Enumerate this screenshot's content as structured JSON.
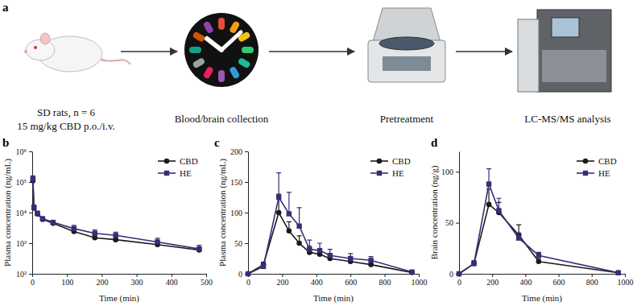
{
  "workflow": {
    "panel_label": "a",
    "steps": [
      {
        "lines": [
          "SD rats, n = 6",
          "15 mg/kg CBD p.o./i.v."
        ]
      },
      {
        "lines": [
          "Blood/brain collection"
        ]
      },
      {
        "lines": [
          "Pretreatment"
        ]
      },
      {
        "lines": [
          "LC-MS/MS analysis"
        ]
      }
    ]
  },
  "chart_data": [
    {
      "type": "line",
      "panel_label": "b",
      "x_label": "Time (min)",
      "y_label": "Plasma concentration (ng/mL)",
      "log": "y",
      "legend": "upper right",
      "x": [
        2,
        5,
        15,
        30,
        60,
        120,
        180,
        240,
        360,
        480
      ],
      "xlim": [
        0,
        500
      ],
      "xticks": [
        0,
        100,
        200,
        300,
        400,
        500
      ],
      "ylim": [
        100,
        1000000
      ],
      "yticks": [
        {
          "value": 100,
          "label": "10²"
        },
        {
          "value": 1000,
          "label": "10³"
        },
        {
          "value": 10000,
          "label": "10⁴"
        },
        {
          "value": 100000,
          "label": "10⁵"
        },
        {
          "value": 1000000,
          "label": "10⁶"
        }
      ],
      "series": [
        {
          "name": "CBD",
          "color": "#1a1a1a",
          "marker": "circle",
          "values": [
            110000,
            14000,
            9000,
            6000,
            4500,
            2400,
            1500,
            1300,
            900,
            600
          ],
          "errors": [
            20000,
            2000,
            1200,
            800,
            500,
            400,
            300,
            250,
            200,
            120
          ]
        },
        {
          "name": "HE",
          "color": "#3b2b78",
          "marker": "square",
          "values": [
            130000,
            15000,
            9500,
            6300,
            4800,
            3000,
            2100,
            1800,
            1100,
            650
          ],
          "errors": [
            30000,
            2500,
            1500,
            900,
            700,
            800,
            600,
            500,
            350,
            200
          ]
        }
      ]
    },
    {
      "type": "line",
      "panel_label": "c",
      "x_label": "Time (min)",
      "y_label": "Plasma concentration (ng/mL)",
      "legend": "upper right",
      "x": [
        0,
        90,
        180,
        240,
        300,
        360,
        420,
        480,
        600,
        720,
        960
      ],
      "xlim": [
        0,
        1000
      ],
      "xticks": [
        0,
        200,
        400,
        600,
        800,
        1000
      ],
      "ylim": [
        0,
        200
      ],
      "yticks": [
        0,
        50,
        100,
        150,
        200
      ],
      "series": [
        {
          "name": "CBD",
          "color": "#1a1a1a",
          "marker": "circle",
          "values": [
            0,
            15,
            100,
            70,
            50,
            35,
            32,
            25,
            20,
            15,
            2
          ],
          "errors": [
            0,
            4,
            30,
            15,
            12,
            10,
            8,
            6,
            5,
            4,
            1
          ]
        },
        {
          "name": "HE",
          "color": "#3b2b78",
          "marker": "square",
          "values": [
            0,
            12,
            125,
            98,
            78,
            40,
            38,
            30,
            25,
            22,
            3
          ],
          "errors": [
            0,
            5,
            40,
            35,
            30,
            15,
            12,
            10,
            8,
            6,
            2
          ]
        }
      ]
    },
    {
      "type": "line",
      "panel_label": "d",
      "x_label": "Time (min)",
      "y_label": "Brain concentration (ng/g)",
      "legend": "upper right",
      "x": [
        0,
        90,
        180,
        240,
        360,
        480,
        960
      ],
      "xlim": [
        0,
        1000
      ],
      "xticks": [
        0,
        200,
        400,
        600,
        800,
        1000
      ],
      "ylim": [
        0,
        120
      ],
      "yticks": [
        0,
        50,
        100
      ],
      "series": [
        {
          "name": "CBD",
          "color": "#1a1a1a",
          "marker": "circle",
          "values": [
            0,
            10,
            68,
            60,
            38,
            12,
            1
          ],
          "errors": [
            0,
            2,
            15,
            10,
            10,
            3,
            0.5
          ]
        },
        {
          "name": "HE",
          "color": "#3b2b78",
          "marker": "square",
          "values": [
            0,
            10,
            88,
            62,
            35,
            18,
            1
          ],
          "errors": [
            0,
            3,
            15,
            12,
            5,
            3,
            0.5
          ]
        }
      ]
    }
  ]
}
